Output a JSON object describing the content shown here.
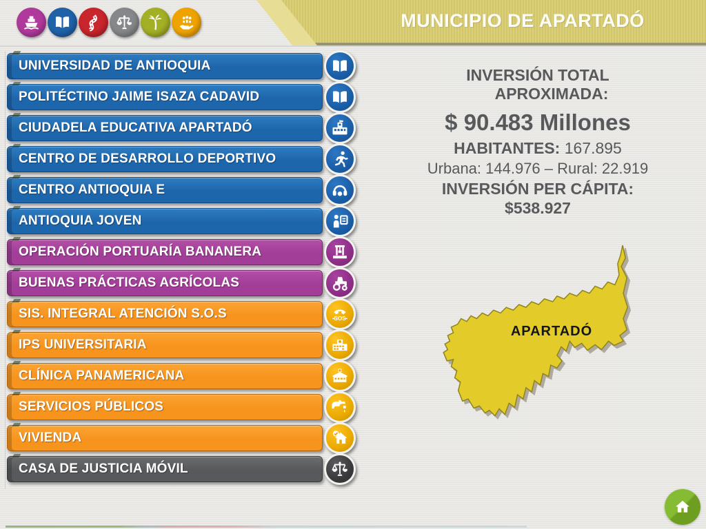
{
  "header": {
    "title": "MUNICIPIO DE APARTADÓ",
    "banner_color": "#D9CC70",
    "logos": [
      {
        "icon": "ship-icon",
        "color": "#B03A9C"
      },
      {
        "icon": "open-book-icon",
        "color": "#1F62A8"
      },
      {
        "icon": "road-icon",
        "color": "#C8252C"
      },
      {
        "icon": "justice-scales-icon",
        "color": "#85878A"
      },
      {
        "icon": "palm-tree-icon",
        "color": "#A3AF24"
      },
      {
        "icon": "hand-people-icon",
        "color": "#EFA300"
      }
    ]
  },
  "projects": {
    "items": [
      {
        "label": "UNIVERSIDAD DE ANTIOQUIA",
        "group": "education-blue",
        "icon": "open-book-icon"
      },
      {
        "label": "POLITÉCTINO JAIME ISAZA CADAVID",
        "group": "education-blue",
        "icon": "open-book-icon"
      },
      {
        "label": "CIUDADELA EDUCATIVA APARTADÓ",
        "group": "education-blue",
        "icon": "school-building-icon"
      },
      {
        "label": "CENTRO DE DESARROLLO DEPORTIVO",
        "group": "education-blue",
        "icon": "runner-icon"
      },
      {
        "label": "CENTRO ANTIOQUIA E",
        "group": "education-blue",
        "icon": "headset-icon"
      },
      {
        "label": "ANTIOQUIA JOVEN",
        "group": "education-blue",
        "icon": "youth-presentation-icon"
      },
      {
        "label": "OPERACIÓN PORTUARÍA BANANERA",
        "group": "agro-purple",
        "icon": "port-crane-icon"
      },
      {
        "label": "BUENAS PRÁCTICAS AGRÍCOLAS",
        "group": "agro-purple",
        "icon": "tractor-icon"
      },
      {
        "label": "SIS. INTEGRAL ATENCIÓN  S.O.S",
        "group": "services-orange",
        "icon": "sos-phone-icon"
      },
      {
        "label": "IPS UNIVERSITARIA",
        "group": "services-orange",
        "icon": "hospital-icon"
      },
      {
        "label": "CLÍNICA PANAMERICANA",
        "group": "services-orange",
        "icon": "clinic-icon"
      },
      {
        "label": "SERVICIOS PÚBLICOS",
        "group": "services-orange",
        "icon": "faucet-icon"
      },
      {
        "label": "VIVIENDA",
        "group": "services-orange",
        "icon": "house-check-icon"
      },
      {
        "label": "CASA DE JUSTICIA MÓVIL",
        "group": "justice-gray",
        "icon": "justice-scales-icon"
      }
    ],
    "group_colors": {
      "education-blue": {
        "bar": "#1E66AC",
        "bar_top": "#2F7CC0",
        "border": "#0F4A85",
        "circle": "#1A5EA7",
        "circle_hi": "#2E77C2"
      },
      "agro-purple": {
        "bar": "#A23D98",
        "bar_top": "#B44FA8",
        "border": "#6F2A68",
        "circle": "#8E2E87",
        "circle_hi": "#A843A0"
      },
      "services-orange": {
        "bar": "#F7941E",
        "bar_top": "#FBA433",
        "border": "#B5650D",
        "circle": "#EBA900",
        "circle_hi": "#FFC324"
      },
      "justice-gray": {
        "bar": "#58595B",
        "bar_top": "#6B6C6F",
        "border": "#38393B",
        "circle": "#3A3A3C",
        "circle_hi": "#5A5A5E"
      }
    }
  },
  "info_panel": {
    "inversion_total_line1": "INVERSIÓN TOTAL",
    "inversion_total_line2": "APROXIMADA:",
    "amount": "$ 90.483 Millones",
    "habitantes_label": "HABITANTES:",
    "habitantes_value": "167.895",
    "urbana_rural": "Urbana: 144.976 – Rural: 22.919",
    "per_capita_label": "INVERSIÓN PER CÁPITA:",
    "per_capita_value": "$538.927",
    "text_color": "#58595B"
  },
  "map": {
    "label": "APARTADÓ",
    "fill": "#E3CC2A",
    "stroke": "#8F851F"
  },
  "home_button": {
    "icon": "home-icon",
    "color": "#76AB26"
  }
}
